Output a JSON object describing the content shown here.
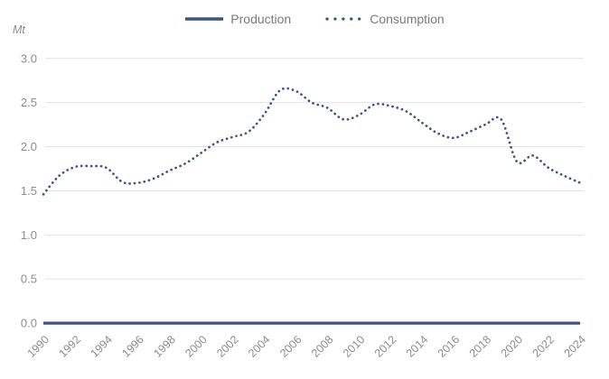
{
  "chart_data": {
    "type": "line",
    "title": "",
    "xlabel": "",
    "ylabel": "Mt",
    "x": [
      1990,
      1991,
      1992,
      1993,
      1994,
      1995,
      1996,
      1997,
      1998,
      1999,
      2000,
      2001,
      2002,
      2003,
      2004,
      2005,
      2006,
      2007,
      2008,
      2009,
      2010,
      2011,
      2012,
      2013,
      2014,
      2015,
      2016,
      2017,
      2018,
      2019,
      2020,
      2021,
      2022,
      2023,
      2024
    ],
    "series": [
      {
        "name": "Production",
        "line_style": "solid",
        "smoothed": false,
        "values": [
          0,
          0,
          0,
          0,
          0,
          0,
          0,
          0,
          0,
          0,
          0,
          0,
          0,
          0,
          0,
          0,
          0,
          0,
          0,
          0,
          0,
          0,
          0,
          0,
          0,
          0,
          0,
          0,
          0,
          0,
          0,
          0,
          0,
          0,
          0
        ]
      },
      {
        "name": "Consumption",
        "line_style": "dotted",
        "smoothed": true,
        "values": [
          1.46,
          1.67,
          1.77,
          1.78,
          1.76,
          1.6,
          1.59,
          1.64,
          1.73,
          1.81,
          1.93,
          2.05,
          2.11,
          2.17,
          2.37,
          2.64,
          2.63,
          2.5,
          2.44,
          2.31,
          2.36,
          2.48,
          2.46,
          2.4,
          2.27,
          2.15,
          2.1,
          2.17,
          2.25,
          2.31,
          1.83,
          1.9,
          1.76,
          1.67,
          1.59
        ]
      }
    ],
    "ylim": [
      0.0,
      3.0
    ],
    "ytick_labels": [
      "0.0",
      "0.5",
      "1.0",
      "1.5",
      "2.0",
      "2.5",
      "3.0"
    ],
    "xtick_labels": [
      "1990",
      "1992",
      "1994",
      "1996",
      "1998",
      "2000",
      "2002",
      "2004",
      "2006",
      "2008",
      "2010",
      "2012",
      "2014",
      "2016",
      "2018",
      "2020",
      "2022",
      "2024"
    ],
    "grid": "horizontal",
    "legend_position": "top-center"
  },
  "colors": {
    "series_blue": "#3a5686",
    "grid_line": "#e3e3e3",
    "axis_text": "#8c8c8c",
    "legend_text": "#7a7a7a",
    "background": "#ffffff"
  }
}
